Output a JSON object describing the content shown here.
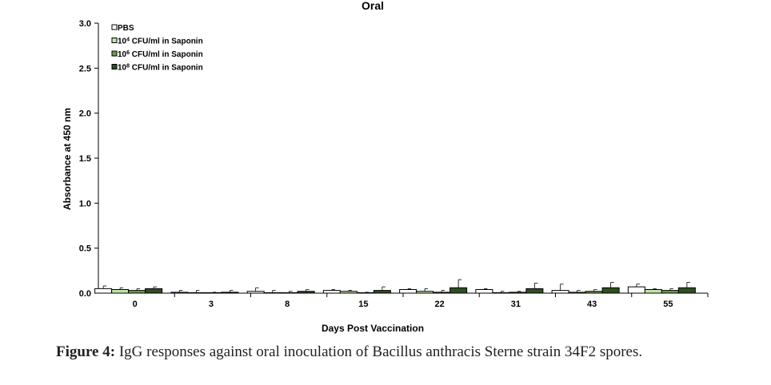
{
  "chart_data": {
    "type": "bar",
    "title": "Oral",
    "xlabel": "Days Post Vaccination",
    "ylabel": "Absorbance at 450 nm",
    "ylim": [
      0,
      3.0
    ],
    "yticks": [
      "0.0",
      "0.5",
      "1.0",
      "1.5",
      "2.0",
      "2.5",
      "3.0"
    ],
    "categories": [
      "0",
      "3",
      "8",
      "15",
      "22",
      "31",
      "43",
      "55"
    ],
    "legend_position": "top-left",
    "error_bars": true,
    "series": [
      {
        "name": "PBS",
        "color": "#ffffff",
        "values": [
          0.05,
          0.01,
          0.02,
          0.03,
          0.04,
          0.04,
          0.03,
          0.07
        ],
        "errors": [
          0.03,
          0.02,
          0.04,
          0.01,
          0.01,
          0.01,
          0.07,
          0.03
        ]
      },
      {
        "name_prefix": "10",
        "name_sup": "4",
        "name_suffix": " CFU/ml in Saponin",
        "color": "#bfe4a8",
        "values": [
          0.04,
          0.0,
          0.0,
          0.02,
          0.02,
          0.0,
          0.01,
          0.04
        ],
        "errors": [
          0.02,
          0.03,
          0.03,
          0.01,
          0.03,
          0.02,
          0.02,
          0.01
        ]
      },
      {
        "name_prefix": "10",
        "name_sup": "6",
        "name_suffix": " CFU/ml in Saponin",
        "color": "#6b9e45",
        "values": [
          0.03,
          0.0,
          0.0,
          0.0,
          0.01,
          0.01,
          0.02,
          0.03
        ],
        "errors": [
          0.02,
          0.01,
          0.02,
          0.01,
          0.02,
          0.01,
          0.02,
          0.02
        ]
      },
      {
        "name_prefix": "10",
        "name_sup": "8",
        "name_suffix": " CFU/ml in Saponin",
        "color": "#2f4d22",
        "values": [
          0.05,
          0.01,
          0.02,
          0.03,
          0.06,
          0.05,
          0.06,
          0.06
        ],
        "errors": [
          0.02,
          0.02,
          0.02,
          0.04,
          0.09,
          0.06,
          0.06,
          0.06
        ]
      }
    ]
  },
  "caption": {
    "label": "Figure 4:",
    "text": " IgG responses against oral inoculation of Bacillus anthracis Sterne strain 34F2 spores."
  }
}
